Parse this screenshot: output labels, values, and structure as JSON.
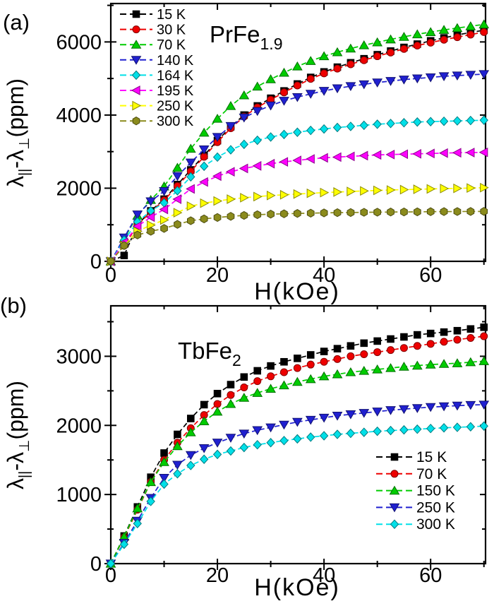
{
  "figure": {
    "background": "#ffffff",
    "panels": [
      {
        "tag": "(a)"
      },
      {
        "tag": "(b)"
      }
    ]
  },
  "chart_data": [
    {
      "type": "line",
      "panel": "a",
      "title": "PrFe",
      "title_subscript": "1.9",
      "xlabel": "H(kOe)",
      "ylabel_parts": {
        "lambda1": "λ",
        "sub1": "||",
        "mid": "-λ",
        "sub2": "⊥",
        "units": "(ppm)"
      },
      "xlim": [
        0,
        70.3
      ],
      "ylim": [
        0,
        7050
      ],
      "x_major_ticks": [
        0,
        20,
        40,
        60
      ],
      "x_minor_ticks": [
        10,
        30,
        50,
        70
      ],
      "y_major_ticks": [
        0,
        2000,
        4000,
        6000
      ],
      "y_minor_ticks": [
        1000,
        3000,
        5000,
        7000
      ],
      "grid": false,
      "legend_position": "top-left",
      "x_kOe": [
        0,
        2.5,
        5,
        7.5,
        10,
        12.5,
        15,
        17.5,
        20,
        22.5,
        25,
        27.5,
        30,
        32.5,
        35,
        37.5,
        40,
        42.5,
        45,
        47.5,
        50,
        52.5,
        55,
        57.5,
        60,
        62.5,
        65,
        67.5,
        70
      ],
      "series": [
        {
          "name": "15 K",
          "color": "#000000",
          "marker": "square",
          "values": [
            0,
            160,
            1000,
            1380,
            1700,
            2100,
            2500,
            2900,
            3300,
            3680,
            4000,
            4250,
            4460,
            4660,
            4850,
            5030,
            5180,
            5310,
            5430,
            5540,
            5650,
            5750,
            5850,
            5940,
            6030,
            6110,
            6190,
            6260,
            6320
          ]
        },
        {
          "name": "30 K",
          "color": "#ee0000",
          "marker": "circle",
          "values": [
            0,
            430,
            980,
            1360,
            1670,
            2060,
            2460,
            2860,
            3260,
            3640,
            3960,
            4210,
            4420,
            4620,
            4810,
            4990,
            5140,
            5270,
            5390,
            5500,
            5610,
            5710,
            5810,
            5900,
            5980,
            6060,
            6130,
            6200,
            6270
          ]
        },
        {
          "name": "70 K",
          "color": "#00cc00",
          "marker": "triangle-up",
          "values": [
            0,
            620,
            1250,
            1680,
            2050,
            2560,
            3080,
            3520,
            3900,
            4250,
            4540,
            4780,
            4980,
            5160,
            5330,
            5480,
            5610,
            5720,
            5820,
            5910,
            5990,
            6070,
            6140,
            6210,
            6270,
            6330,
            6380,
            6430,
            6480
          ]
        },
        {
          "name": "140 K",
          "color": "#2020d0",
          "marker": "triangle-down",
          "values": [
            0,
            650,
            1280,
            1640,
            1920,
            2330,
            2700,
            3060,
            3400,
            3700,
            3930,
            4110,
            4260,
            4390,
            4490,
            4580,
            4660,
            4730,
            4790,
            4840,
            4890,
            4930,
            4970,
            5000,
            5030,
            5060,
            5080,
            5100,
            5120
          ]
        },
        {
          "name": "164 K",
          "color": "#00e0e8",
          "marker": "diamond",
          "values": [
            0,
            580,
            1080,
            1380,
            1600,
            1930,
            2310,
            2600,
            2850,
            3050,
            3200,
            3310,
            3400,
            3470,
            3530,
            3580,
            3620,
            3660,
            3690,
            3720,
            3750,
            3770,
            3790,
            3810,
            3820,
            3830,
            3840,
            3850,
            3860
          ]
        },
        {
          "name": "195 K",
          "color": "#ff00ff",
          "marker": "triangle-left",
          "values": [
            0,
            520,
            960,
            1210,
            1420,
            1700,
            1980,
            2170,
            2330,
            2450,
            2540,
            2610,
            2670,
            2720,
            2760,
            2800,
            2830,
            2850,
            2870,
            2890,
            2910,
            2920,
            2930,
            2940,
            2950,
            2960,
            2970,
            2975,
            2980
          ]
        },
        {
          "name": "250 K",
          "color": "#ffff00",
          "marker": "triangle-right",
          "values": [
            0,
            430,
            820,
            990,
            1130,
            1330,
            1510,
            1590,
            1650,
            1700,
            1740,
            1770,
            1800,
            1820,
            1840,
            1860,
            1880,
            1895,
            1910,
            1925,
            1940,
            1950,
            1960,
            1970,
            1980,
            1990,
            1995,
            2005,
            2015
          ]
        },
        {
          "name": "300 K",
          "color": "#8b8b1d",
          "marker": "hexagon",
          "values": [
            0,
            430,
            720,
            820,
            900,
            1010,
            1110,
            1160,
            1200,
            1230,
            1255,
            1275,
            1290,
            1300,
            1310,
            1318,
            1325,
            1330,
            1335,
            1340,
            1344,
            1348,
            1351,
            1354,
            1357,
            1360,
            1362,
            1364,
            1366
          ]
        }
      ]
    },
    {
      "type": "line",
      "panel": "b",
      "title": "TbFe",
      "title_subscript": "2",
      "xlabel": "H(kOe)",
      "ylabel_parts": {
        "lambda1": "λ",
        "sub1": "||",
        "mid": "-λ",
        "sub2": "⊥",
        "units": "(ppm)"
      },
      "xlim": [
        0,
        70.3
      ],
      "ylim": [
        0,
        3730
      ],
      "x_major_ticks": [
        0,
        20,
        40,
        60
      ],
      "x_minor_ticks": [
        10,
        30,
        50,
        70
      ],
      "y_major_ticks": [
        0,
        1000,
        2000,
        3000
      ],
      "y_minor_ticks": [
        500,
        1500,
        2500,
        3500
      ],
      "grid": false,
      "legend_position": "bottom-right",
      "x_kOe": [
        0,
        2.5,
        5,
        7.5,
        10,
        12.5,
        15,
        17.5,
        20,
        22.5,
        25,
        27.5,
        30,
        32.5,
        35,
        37.5,
        40,
        42.5,
        45,
        47.5,
        50,
        52.5,
        55,
        57.5,
        60,
        62.5,
        65,
        67.5,
        70
      ],
      "series": [
        {
          "name": "15 K",
          "color": "#000000",
          "marker": "square",
          "values": [
            0,
            400,
            820,
            1250,
            1600,
            1870,
            2100,
            2300,
            2460,
            2590,
            2700,
            2790,
            2860,
            2920,
            2970,
            3020,
            3070,
            3110,
            3150,
            3190,
            3220,
            3250,
            3280,
            3310,
            3330,
            3350,
            3370,
            3395,
            3420
          ]
        },
        {
          "name": "70 K",
          "color": "#ee0000",
          "marker": "circle",
          "values": [
            0,
            380,
            780,
            1180,
            1500,
            1750,
            1960,
            2150,
            2310,
            2440,
            2550,
            2640,
            2710,
            2770,
            2830,
            2880,
            2920,
            2960,
            3000,
            3030,
            3060,
            3090,
            3120,
            3150,
            3180,
            3210,
            3240,
            3265,
            3290
          ]
        },
        {
          "name": "150 K",
          "color": "#00cc00",
          "marker": "triangle-up",
          "values": [
            0,
            390,
            800,
            1180,
            1470,
            1700,
            1900,
            2060,
            2200,
            2310,
            2400,
            2470,
            2530,
            2580,
            2630,
            2670,
            2710,
            2740,
            2770,
            2790,
            2810,
            2830,
            2850,
            2865,
            2880,
            2890,
            2900,
            2915,
            2930
          ]
        },
        {
          "name": "250 K",
          "color": "#2020d0",
          "marker": "triangle-down",
          "values": [
            0,
            300,
            620,
            950,
            1240,
            1430,
            1570,
            1670,
            1750,
            1820,
            1880,
            1930,
            1970,
            2010,
            2050,
            2080,
            2110,
            2140,
            2160,
            2180,
            2200,
            2220,
            2235,
            2250,
            2265,
            2275,
            2285,
            2295,
            2300
          ]
        },
        {
          "name": "300 K",
          "color": "#00e0e8",
          "marker": "diamond",
          "values": [
            0,
            280,
            580,
            900,
            1150,
            1300,
            1420,
            1510,
            1580,
            1630,
            1680,
            1720,
            1750,
            1780,
            1805,
            1830,
            1850,
            1870,
            1885,
            1900,
            1915,
            1925,
            1935,
            1945,
            1955,
            1965,
            1972,
            1980,
            1990
          ]
        }
      ]
    }
  ]
}
